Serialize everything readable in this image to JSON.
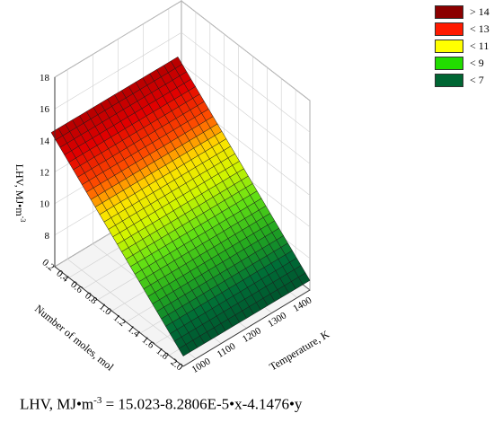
{
  "chart_data": {
    "type": "surface3d",
    "title": "",
    "xlabel": "Temperature, K",
    "ylabel": "Number of moles, mol",
    "zlabel": "LHV, MJ•m",
    "zlabel_sup": "-3",
    "x_ticks": [
      "1000",
      "1100",
      "1200",
      "1300",
      "1400"
    ],
    "y_ticks": [
      "0.2",
      "0.4",
      "0.6",
      "0.8",
      "1.0",
      "1.2",
      "1.4",
      "1.6",
      "1.8",
      "2.0"
    ],
    "z_ticks": [
      "8",
      "10",
      "12",
      "14",
      "16",
      "18"
    ],
    "xlim": [
      950,
      1450
    ],
    "ylim": [
      0.2,
      2.0
    ],
    "zlim": [
      6,
      18
    ],
    "equation": {
      "intercept": 15.023,
      "x_coef": -8.2806e-05,
      "y_coef": -4.1476
    },
    "legend": [
      {
        "label": "> 14",
        "color": "#8b0000"
      },
      {
        "label": "< 13",
        "color": "#ff1a00"
      },
      {
        "label": "< 11",
        "color": "#ffff00"
      },
      {
        "label": "< 9",
        "color": "#22dd00"
      },
      {
        "label": "< 7",
        "color": "#006633"
      }
    ],
    "grid": true,
    "legend_position": "top-right"
  },
  "formula": {
    "lhs": "LHV, MJ•m",
    "sup": "-3",
    "rhs": " = 15.023-8.2806E-5•x-4.1476•y"
  }
}
